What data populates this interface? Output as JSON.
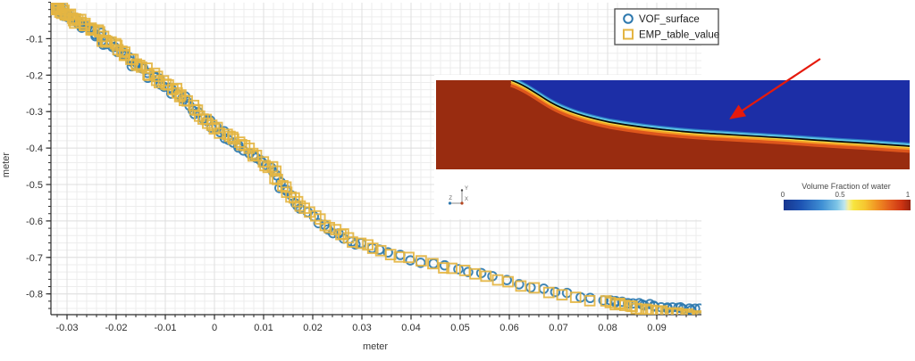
{
  "chart_data": {
    "type": "scatter",
    "title": "",
    "xlabel": "meter",
    "ylabel": "meter",
    "xlim": [
      -0.0333,
      0.0991
    ],
    "ylim": [
      -0.857,
      0
    ],
    "grid": true,
    "x_minor_step": 0.002,
    "y_minor_step": 0.02,
    "x_ticks": [
      -0.03,
      -0.02,
      -0.01,
      0,
      0.01,
      0.02,
      0.03,
      0.04,
      0.05,
      0.06,
      0.07,
      0.08,
      0.09
    ],
    "x_tick_labels": [
      "-0.03",
      "-0.02",
      "-0.01",
      "0",
      "0.01",
      "0.02",
      "0.03",
      "0.04",
      "0.05",
      "0.06",
      "0.07",
      "0.08",
      "0.09"
    ],
    "y_ticks": [
      -0.1,
      -0.2,
      -0.3,
      -0.4,
      -0.5,
      -0.6,
      -0.7,
      -0.8
    ],
    "y_tick_labels": [
      "-0.1",
      "-0.2",
      "-0.3",
      "-0.4",
      "-0.5",
      "-0.6",
      "-0.7",
      "-0.8"
    ],
    "legend_position": "top-right",
    "series": [
      {
        "name": "VOF_surface",
        "marker": "circle",
        "color": "#2d78ae",
        "n_points": 140,
        "tail_extra": {
          "x_start": 0.0805,
          "x_end": 0.0988,
          "step": 0.00115
        },
        "anchors": [
          [
            -0.033,
            -0.01
          ],
          [
            -0.0315,
            -0.022
          ],
          [
            -0.03,
            -0.035
          ],
          [
            -0.0285,
            -0.05
          ],
          [
            -0.027,
            -0.06
          ],
          [
            -0.0255,
            -0.07
          ],
          [
            -0.024,
            -0.085
          ],
          [
            -0.0225,
            -0.105
          ],
          [
            -0.021,
            -0.118
          ],
          [
            -0.0195,
            -0.13
          ],
          [
            -0.018,
            -0.148
          ],
          [
            -0.0165,
            -0.168
          ],
          [
            -0.015,
            -0.18
          ],
          [
            -0.0135,
            -0.198
          ],
          [
            -0.012,
            -0.21
          ],
          [
            -0.0105,
            -0.222
          ],
          [
            -0.009,
            -0.238
          ],
          [
            -0.0075,
            -0.252
          ],
          [
            -0.006,
            -0.27
          ],
          [
            -0.0045,
            -0.292
          ],
          [
            -0.003,
            -0.31
          ],
          [
            -0.0015,
            -0.325
          ],
          [
            0.0,
            -0.342
          ],
          [
            0.0015,
            -0.358
          ],
          [
            0.003,
            -0.372
          ],
          [
            0.0045,
            -0.388
          ],
          [
            0.006,
            -0.4
          ],
          [
            0.0075,
            -0.415
          ],
          [
            0.009,
            -0.43
          ],
          [
            0.0105,
            -0.448
          ],
          [
            0.012,
            -0.462
          ],
          [
            0.013,
            -0.49
          ],
          [
            0.014,
            -0.512
          ],
          [
            0.015,
            -0.528
          ],
          [
            0.0165,
            -0.552
          ],
          [
            0.018,
            -0.568
          ],
          [
            0.02,
            -0.59
          ],
          [
            0.022,
            -0.61
          ],
          [
            0.024,
            -0.625
          ],
          [
            0.026,
            -0.64
          ],
          [
            0.028,
            -0.654
          ],
          [
            0.03,
            -0.664
          ],
          [
            0.033,
            -0.678
          ],
          [
            0.036,
            -0.69
          ],
          [
            0.04,
            -0.703
          ],
          [
            0.044,
            -0.715
          ],
          [
            0.048,
            -0.727
          ],
          [
            0.052,
            -0.738
          ],
          [
            0.056,
            -0.75
          ],
          [
            0.06,
            -0.764
          ],
          [
            0.064,
            -0.778
          ],
          [
            0.068,
            -0.79
          ],
          [
            0.072,
            -0.8
          ],
          [
            0.076,
            -0.81
          ],
          [
            0.08,
            -0.818
          ],
          [
            0.084,
            -0.824
          ],
          [
            0.088,
            -0.83
          ],
          [
            0.092,
            -0.836
          ],
          [
            0.096,
            -0.84
          ],
          [
            0.0985,
            -0.843
          ]
        ]
      },
      {
        "name": "EMP_table_value",
        "marker": "square",
        "color": "#e4b542",
        "n_points": 150,
        "tail_extra": {
          "x_start": 0.0805,
          "x_end": 0.0988,
          "step": 0.00105
        },
        "anchors": [
          [
            -0.033,
            -0.008
          ],
          [
            -0.0315,
            -0.02
          ],
          [
            -0.03,
            -0.033
          ],
          [
            -0.0285,
            -0.048
          ],
          [
            -0.027,
            -0.058
          ],
          [
            -0.0255,
            -0.068
          ],
          [
            -0.024,
            -0.082
          ],
          [
            -0.0225,
            -0.102
          ],
          [
            -0.021,
            -0.115
          ],
          [
            -0.0195,
            -0.127
          ],
          [
            -0.018,
            -0.145
          ],
          [
            -0.0165,
            -0.165
          ],
          [
            -0.015,
            -0.177
          ],
          [
            -0.0135,
            -0.195
          ],
          [
            -0.012,
            -0.207
          ],
          [
            -0.0105,
            -0.219
          ],
          [
            -0.009,
            -0.235
          ],
          [
            -0.0075,
            -0.249
          ],
          [
            -0.006,
            -0.267
          ],
          [
            -0.0045,
            -0.289
          ],
          [
            -0.003,
            -0.307
          ],
          [
            -0.0015,
            -0.322
          ],
          [
            0.0,
            -0.339
          ],
          [
            0.0015,
            -0.355
          ],
          [
            0.003,
            -0.369
          ],
          [
            0.0045,
            -0.385
          ],
          [
            0.006,
            -0.397
          ],
          [
            0.0075,
            -0.412
          ],
          [
            0.009,
            -0.427
          ],
          [
            0.0105,
            -0.445
          ],
          [
            0.012,
            -0.459
          ],
          [
            0.013,
            -0.487
          ],
          [
            0.014,
            -0.509
          ],
          [
            0.015,
            -0.525
          ],
          [
            0.0165,
            -0.549
          ],
          [
            0.018,
            -0.565
          ],
          [
            0.02,
            -0.587
          ],
          [
            0.022,
            -0.607
          ],
          [
            0.024,
            -0.622
          ],
          [
            0.026,
            -0.638
          ],
          [
            0.028,
            -0.652
          ],
          [
            0.03,
            -0.663
          ],
          [
            0.033,
            -0.677
          ],
          [
            0.036,
            -0.69
          ],
          [
            0.04,
            -0.704
          ],
          [
            0.044,
            -0.717
          ],
          [
            0.048,
            -0.73
          ],
          [
            0.052,
            -0.742
          ],
          [
            0.056,
            -0.755
          ],
          [
            0.06,
            -0.77
          ],
          [
            0.065,
            -0.785
          ],
          [
            0.07,
            -0.8
          ],
          [
            0.075,
            -0.812
          ],
          [
            0.08,
            -0.824
          ],
          [
            0.085,
            -0.836
          ],
          [
            0.09,
            -0.847
          ],
          [
            0.095,
            -0.856
          ],
          [
            0.0985,
            -0.862
          ]
        ]
      }
    ]
  },
  "inset": {
    "air_color": "#1c2ea6",
    "water_color": "#992c10",
    "interface_color": "#0a0a0a",
    "arrow_color": "#e51a0c",
    "colorbar": {
      "title": "Volume Fraction of water",
      "ticks": [
        "0",
        "0.5",
        "1"
      ]
    },
    "triad": {
      "x": "X",
      "y": "Y",
      "z": "Z"
    }
  }
}
